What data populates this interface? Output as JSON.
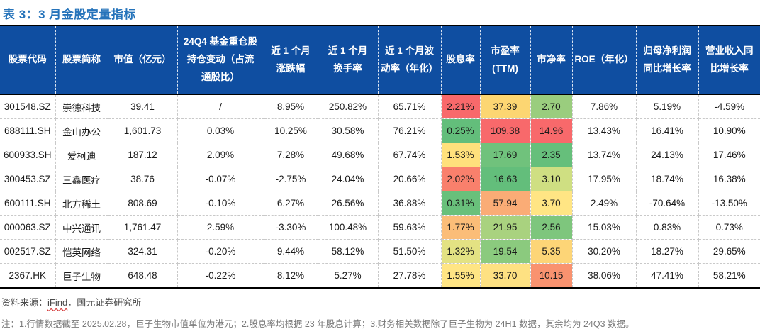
{
  "title": "表 3：3 月金股定量指标",
  "table": {
    "header_bg": "#0F4EA1",
    "heat_scale": {
      "low": "#63BE7B",
      "mid": "#FFEB84",
      "high": "#F8696B"
    },
    "columns": [
      {
        "label": "股票代码"
      },
      {
        "label": "股票简称"
      },
      {
        "label": "市值（亿元）"
      },
      {
        "label": "24Q4 基金重仓股\n持仓变动（占流\n通股比）"
      },
      {
        "label": "近 1 个月\n涨跌幅"
      },
      {
        "label": "近 1 个月\n换手率"
      },
      {
        "label": "近 1 个月波\n动率（年化）"
      },
      {
        "label": "股息率"
      },
      {
        "label": "市盈率\n(TTM)"
      },
      {
        "label": "市净率"
      },
      {
        "label": "ROE（年化）"
      },
      {
        "label": "归母净利润\n同比增长率"
      },
      {
        "label": "营业收入同\n比增长率"
      }
    ],
    "rows": [
      {
        "cells": [
          "301548.SZ",
          "崇德科技",
          "39.41",
          "/",
          "8.95%",
          "250.82%",
          "65.71%",
          "2.21%",
          "37.39",
          "2.70",
          "7.86%",
          "5.19%",
          "-4.59%"
        ],
        "heat": {
          "7": "#F8696B",
          "8": "#FCD672",
          "9": "#9ACD7E"
        }
      },
      {
        "cells": [
          "688111.SH",
          "金山办公",
          "1,601.73",
          "0.03%",
          "10.25%",
          "30.58%",
          "76.21%",
          "0.25%",
          "109.38",
          "14.96",
          "13.43%",
          "16.41%",
          "10.90%"
        ],
        "heat": {
          "7": "#63BE7B",
          "8": "#F8696B",
          "9": "#F8696B"
        }
      },
      {
        "cells": [
          "600933.SH",
          "爱柯迪",
          "187.12",
          "2.09%",
          "7.28%",
          "49.68%",
          "67.74%",
          "1.53%",
          "17.69",
          "2.35",
          "13.74%",
          "24.13%",
          "17.46%"
        ],
        "heat": {
          "7": "#FFE17C",
          "8": "#70C27C",
          "9": "#66BF7B"
        }
      },
      {
        "cells": [
          "300453.SZ",
          "三鑫医疗",
          "38.76",
          "-0.07%",
          "-2.75%",
          "24.04%",
          "20.66%",
          "2.02%",
          "16.63",
          "3.10",
          "17.95%",
          "18.74%",
          "16.38%"
        ],
        "heat": {
          "7": "#F9806C",
          "8": "#63BE7B",
          "9": "#CFDF82"
        }
      },
      {
        "cells": [
          "600111.SH",
          "北方稀土",
          "808.69",
          "-0.10%",
          "6.27%",
          "26.56%",
          "36.88%",
          "0.31%",
          "57.94",
          "3.70",
          "2.49%",
          "-70.64%",
          "-13.50%"
        ],
        "heat": {
          "7": "#69C07B",
          "8": "#FAAC76",
          "9": "#FFE584"
        }
      },
      {
        "cells": [
          "000063.SZ",
          "中兴通讯",
          "1,761.47",
          "2.59%",
          "-3.30%",
          "100.48%",
          "59.63%",
          "1.77%",
          "21.95",
          "2.56",
          "15.03%",
          "0.83%",
          "0.73%"
        ],
        "heat": {
          "7": "#FBBD78",
          "8": "#A9D27F",
          "9": "#7EC67D"
        }
      },
      {
        "cells": [
          "002517.SZ",
          "恺英网络",
          "324.31",
          "-0.20%",
          "9.44%",
          "58.12%",
          "51.50%",
          "1.32%",
          "19.54",
          "5.35",
          "30.20%",
          "18.27%",
          "29.65%"
        ],
        "heat": {
          "7": "#E3E283",
          "8": "#8BCA7E",
          "9": "#FDD577"
        }
      },
      {
        "cells": [
          "2367.HK",
          "巨子生物",
          "648.48",
          "-0.22%",
          "8.12%",
          "5.27%",
          "27.78%",
          "1.55%",
          "33.70",
          "10.15",
          "38.06%",
          "47.41%",
          "58.21%"
        ],
        "heat": {
          "7": "#FFE584",
          "8": "#FEE182",
          "9": "#F9926F"
        }
      }
    ]
  },
  "footer": {
    "source_prefix": "资料来源：",
    "source_link": "iFind",
    "source_suffix": "，国元证券研究所",
    "note": "注：1.行情数据截至 2025.02.28，巨子生物市值单位为港元；2.股息率均根据 23 年股息计算；3.财务相关数据除了巨子生物为 24H1 数据，其余均为 24Q3 数据。"
  }
}
